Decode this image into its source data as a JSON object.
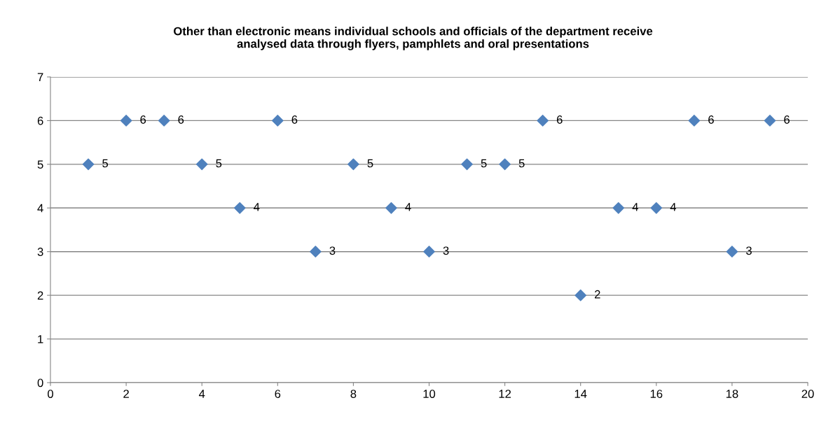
{
  "chart_data": {
    "type": "scatter",
    "title": "Other than electronic means individual schools and officials of the department receive\nanalysed data through flyers, pamphlets and oral presentations",
    "x": [
      1,
      2,
      3,
      4,
      5,
      6,
      7,
      8,
      9,
      10,
      11,
      12,
      13,
      14,
      15,
      16,
      17,
      18,
      19
    ],
    "series": [
      {
        "color": "#4f81bd",
        "values": [
          5,
          6,
          6,
          5,
          4,
          6,
          3,
          5,
          4,
          3,
          5,
          5,
          6,
          2,
          4,
          4,
          6,
          3,
          6
        ]
      }
    ],
    "xlim": [
      0,
      20
    ],
    "xticks": [
      0,
      2,
      4,
      6,
      8,
      10,
      12,
      14,
      16,
      18,
      20
    ],
    "ylim": [
      0,
      7
    ],
    "yticks": [
      0,
      1,
      2,
      3,
      4,
      5,
      6,
      7
    ],
    "grid": "y",
    "marker": "diamond",
    "data_labels": true
  }
}
